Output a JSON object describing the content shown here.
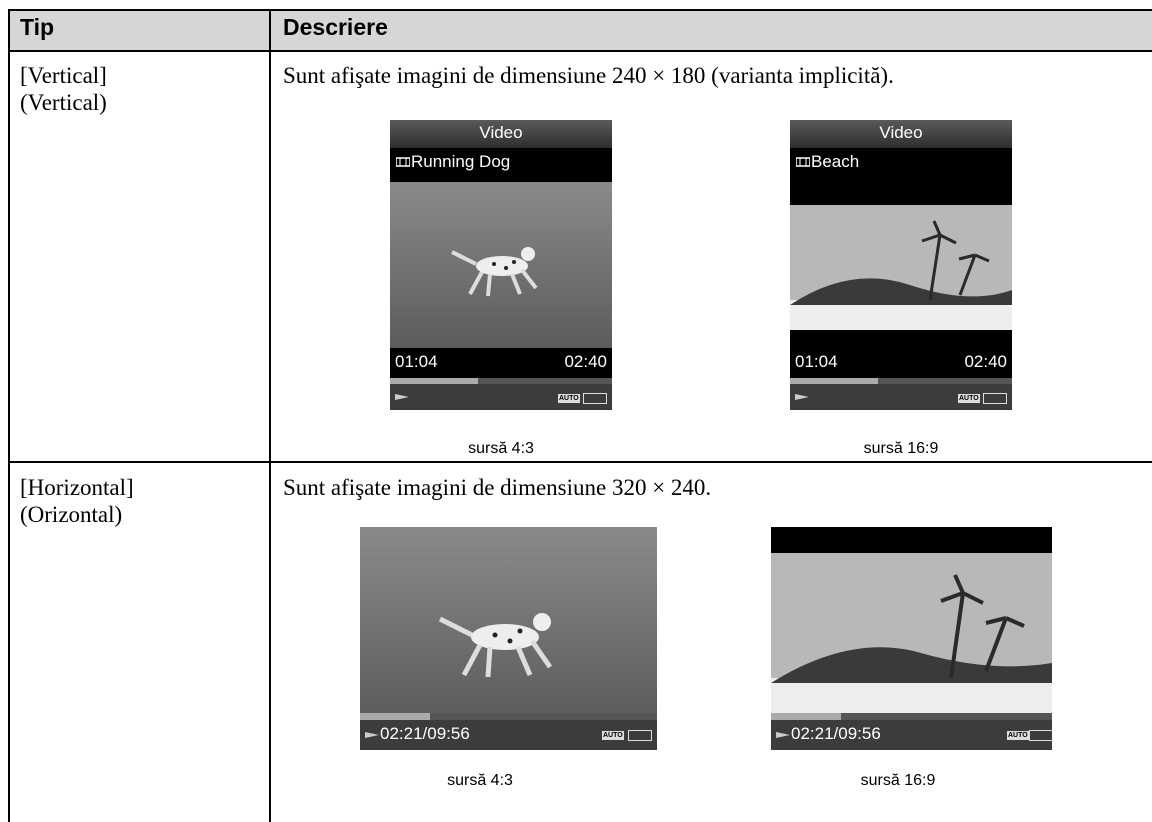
{
  "table": {
    "header": [
      "Tip",
      "Descriere"
    ],
    "rows": [
      {
        "type": [
          "[Vertical]",
          "(Vertical)"
        ],
        "description": "Sunt afişate imagini de dimensiune 240 × 180 (varianta implicită).",
        "screens": [
          {
            "title": "Video",
            "file": "Running Dog",
            "elapsed": "01:04",
            "total": "02:40",
            "badge": "AUTO",
            "caption": "sursă 4:3"
          },
          {
            "title": "Video",
            "file": "Beach",
            "elapsed": "01:04",
            "total": "02:40",
            "badge": "AUTO",
            "caption": "sursă 16:9"
          }
        ]
      },
      {
        "type": [
          "[Horizontal]",
          "(Orizontal)"
        ],
        "description": "Sunt afişate imagini de dimensiune 320 × 240.",
        "screens": [
          {
            "time": "02:21/09:56",
            "badge": "AUTO",
            "caption": "sursă 4:3"
          },
          {
            "time": "02:21/09:56",
            "badge": "AUTO",
            "caption": "sursă 16:9"
          }
        ]
      }
    ]
  }
}
